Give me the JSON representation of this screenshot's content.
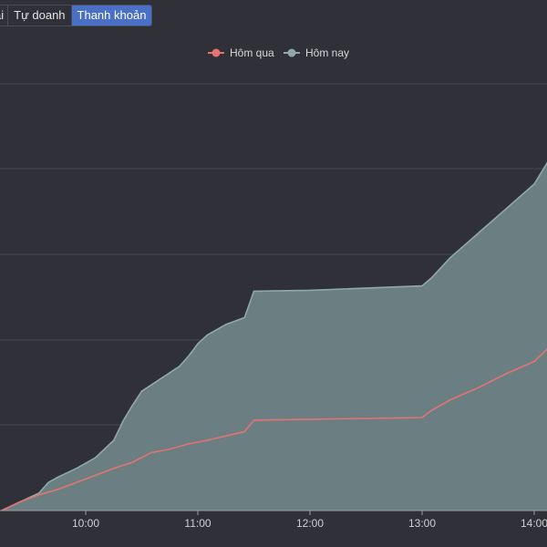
{
  "tabs": [
    {
      "label": "ài",
      "active": false
    },
    {
      "label": "Tự doanh",
      "active": false
    },
    {
      "label": "Thanh khoản",
      "active": true
    }
  ],
  "colors": {
    "background": "#2f3038",
    "grid": "#454854",
    "yesterday": "#e57373",
    "today_line": "#8fa9aa",
    "today_fill": "#6b7f82",
    "active_tab": "#4a6fc7"
  },
  "chart_data": {
    "type": "area",
    "title": "",
    "xlabel": "",
    "ylabel": "",
    "x_ticks": [
      "10:00",
      "11:00",
      "12:00",
      "13:00",
      "14:00"
    ],
    "legend_position": "top-center",
    "grid": true,
    "x_unit": "time",
    "series": [
      {
        "name": "Hôm qua",
        "color": "#e57373",
        "points": [
          [
            "09:15",
            0.0
          ],
          [
            "09:25",
            1.0
          ],
          [
            "09:35",
            1.8
          ],
          [
            "09:45",
            2.4
          ],
          [
            "09:55",
            3.2
          ],
          [
            "10:05",
            4.0
          ],
          [
            "10:15",
            4.8
          ],
          [
            "10:25",
            5.5
          ],
          [
            "10:35",
            6.6
          ],
          [
            "10:45",
            7.0
          ],
          [
            "10:55",
            7.6
          ],
          [
            "11:05",
            8.0
          ],
          [
            "11:15",
            8.5
          ],
          [
            "11:25",
            9.0
          ],
          [
            "11:30",
            10.3
          ],
          [
            "12:00",
            10.4
          ],
          [
            "13:00",
            10.6
          ],
          [
            "13:05",
            11.4
          ],
          [
            "13:15",
            12.6
          ],
          [
            "13:30",
            14.0
          ],
          [
            "13:45",
            15.6
          ],
          [
            "14:00",
            17.0
          ],
          [
            "14:08",
            18.6
          ]
        ]
      },
      {
        "name": "Hôm nay",
        "color": "#8fa9aa",
        "points": [
          [
            "09:15",
            0.0
          ],
          [
            "09:25",
            1.0
          ],
          [
            "09:35",
            2.0
          ],
          [
            "09:40",
            3.2
          ],
          [
            "09:45",
            3.8
          ],
          [
            "09:55",
            4.8
          ],
          [
            "10:05",
            6.0
          ],
          [
            "10:15",
            8.0
          ],
          [
            "10:20",
            10.2
          ],
          [
            "10:25",
            12.0
          ],
          [
            "10:30",
            13.6
          ],
          [
            "10:40",
            15.0
          ],
          [
            "10:50",
            16.4
          ],
          [
            "10:55",
            17.6
          ],
          [
            "11:00",
            19.0
          ],
          [
            "11:05",
            20.0
          ],
          [
            "11:15",
            21.2
          ],
          [
            "11:25",
            22.0
          ],
          [
            "11:30",
            25.0
          ],
          [
            "12:00",
            25.1
          ],
          [
            "13:00",
            25.6
          ],
          [
            "13:05",
            26.5
          ],
          [
            "13:15",
            28.8
          ],
          [
            "13:30",
            31.6
          ],
          [
            "13:45",
            34.4
          ],
          [
            "14:00",
            37.2
          ],
          [
            "14:08",
            40.0
          ]
        ]
      }
    ]
  }
}
